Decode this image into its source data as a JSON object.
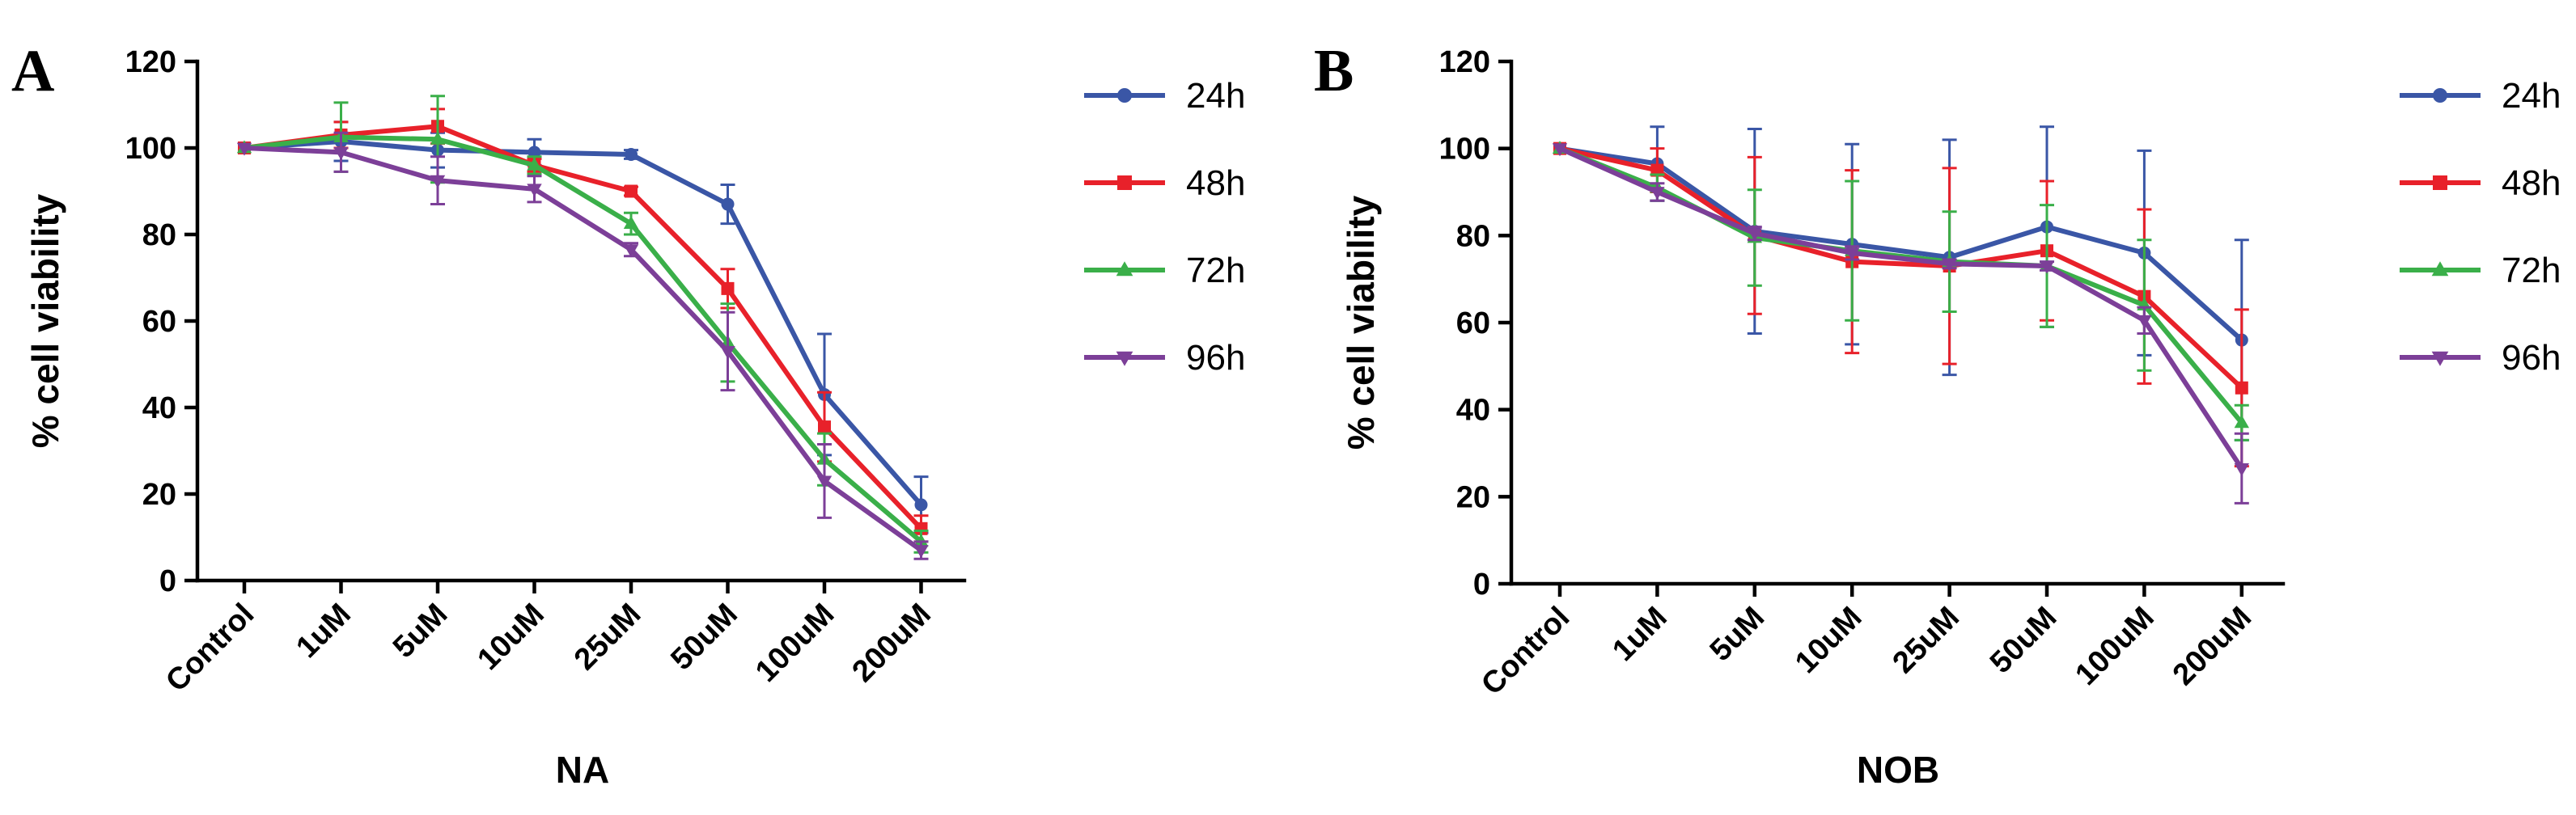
{
  "chart_data": [
    {
      "type": "line",
      "panel_label": "A",
      "xlabel": "NA",
      "ylabel": "% cell viability",
      "ylim": [
        0,
        120
      ],
      "yticks": [
        "0",
        "20",
        "40",
        "60",
        "80",
        "100",
        "120"
      ],
      "categories": [
        "Control",
        "1uM",
        "5uM",
        "10uM",
        "25uM",
        "50uM",
        "100uM",
        "200uM"
      ],
      "legend_position": "right",
      "series": [
        {
          "name": "24h",
          "color": "#3a56a6",
          "marker": "circle",
          "values": [
            100,
            101.5,
            99.5,
            99,
            98.5,
            87,
            43,
            17.5
          ],
          "errors": [
            0,
            4.5,
            4,
            3,
            1,
            4.5,
            14,
            6.5
          ]
        },
        {
          "name": "48h",
          "color": "#e8212a",
          "marker": "square",
          "values": [
            100,
            103,
            105,
            96,
            90,
            67.5,
            35.5,
            12
          ],
          "errors": [
            0,
            3,
            4,
            1.5,
            1,
            4.5,
            8,
            3
          ]
        },
        {
          "name": "72h",
          "color": "#3aaf49",
          "marker": "triangle-up",
          "values": [
            100,
            102.5,
            102,
            96,
            82.5,
            55,
            28,
            9
          ],
          "errors": [
            0,
            8,
            10,
            2,
            2.5,
            9,
            6,
            2.5
          ]
        },
        {
          "name": "96h",
          "color": "#7c3f98",
          "marker": "triangle-down",
          "values": [
            100,
            99,
            92.5,
            90.5,
            76.5,
            53,
            23,
            7
          ],
          "errors": [
            0,
            4.5,
            5.5,
            3,
            1.5,
            9,
            8.5,
            2
          ]
        }
      ]
    },
    {
      "type": "line",
      "panel_label": "B",
      "xlabel": "NOB",
      "ylabel": "% cell viability",
      "ylim": [
        0,
        120
      ],
      "yticks": [
        "0",
        "20",
        "40",
        "60",
        "80",
        "100",
        "120"
      ],
      "categories": [
        "Control",
        "1uM",
        "5uM",
        "10uM",
        "25uM",
        "50uM",
        "100uM",
        "200uM"
      ],
      "legend_position": "right",
      "series": [
        {
          "name": "24h",
          "color": "#3a56a6",
          "marker": "circle",
          "values": [
            100,
            96.5,
            81,
            78,
            75,
            82,
            76,
            56
          ],
          "errors": [
            0,
            8.5,
            23.5,
            23,
            27,
            23,
            23.5,
            23
          ]
        },
        {
          "name": "48h",
          "color": "#e8212a",
          "marker": "square",
          "values": [
            100,
            95,
            80,
            74,
            73,
            76.5,
            66,
            45
          ],
          "errors": [
            0,
            5,
            18,
            21,
            22.5,
            16,
            20,
            18
          ]
        },
        {
          "name": "72h",
          "color": "#3aaf49",
          "marker": "triangle-up",
          "values": [
            100,
            91,
            79.5,
            76.5,
            74,
            73,
            64,
            37
          ],
          "errors": [
            0,
            3,
            11,
            16,
            11.5,
            14,
            15,
            4
          ]
        },
        {
          "name": "96h",
          "color": "#7c3f98",
          "marker": "triangle-down",
          "values": [
            100,
            90,
            80.5,
            76,
            73.5,
            73,
            60.5,
            26.5
          ],
          "errors": [
            0,
            2,
            1.5,
            1.5,
            1,
            1,
            3,
            8
          ]
        }
      ]
    }
  ]
}
